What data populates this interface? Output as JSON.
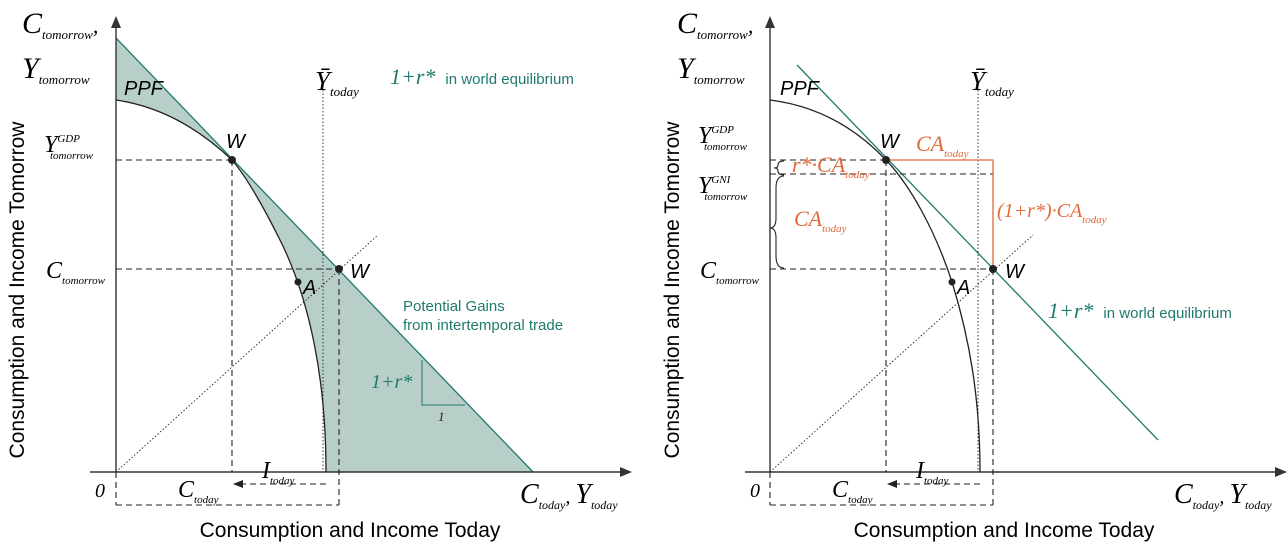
{
  "colors": {
    "teal": "#1f7a6e",
    "shade": "#b8cfc9",
    "orange": "#e06a3a",
    "ink": "#222222"
  },
  "shared": {
    "y_axis_title": "Consumption and Income Tomorrow",
    "x_axis_title": "Consumption and Income Today",
    "origin": "0",
    "y_top_label_c": "C",
    "y_top_label_c_sub": "tomorrow",
    "y_top_label_y": "Y",
    "y_top_label_y_sub": "tomorrow",
    "x_end_c": "C",
    "x_end_c_sub": "today",
    "x_end_y": "Y",
    "x_end_y_sub": "today",
    "ppf": "PPF",
    "ybar": "Ȳ",
    "ybar_sub": "today",
    "ydp": "Y",
    "ydp_sub": "tomorrow",
    "ydp_sup": "GDP",
    "c_tom": "C",
    "c_tom_sub": "tomorrow",
    "c_today": "C",
    "c_today_sub": "today",
    "i_today": "I",
    "i_today_sub": "today",
    "point_w": "W",
    "point_a": "A"
  },
  "left": {
    "world_rate": "1+r*",
    "world_rate_note": "in world equilibrium",
    "gains_line1": "Potential Gains",
    "gains_line2": "from intertemporal trade",
    "slope_rate": "1+r*",
    "slope_run": "1"
  },
  "right": {
    "gni": "Y",
    "gni_sub": "tomorrow",
    "gni_sup": "GNI",
    "ca_today": "CA",
    "ca_today_sub": "today",
    "r_ca": "r*·CA",
    "r_ca_sub": "today",
    "ca_left": "CA",
    "ca_left_sub": "today",
    "one_plus_r_ca": "(1+r*)·CA",
    "one_plus_r_ca_sub": "today",
    "world_rate": "1+r*",
    "world_rate_note": "in world equilibrium"
  }
}
